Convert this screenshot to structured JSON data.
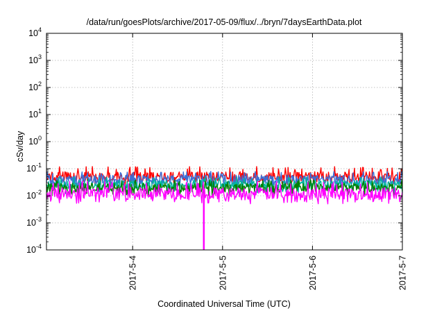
{
  "chart_data": {
    "type": "line",
    "title": "/data/run/goesPlots/archive/2017-05-09/flux/../bryn/7daysEarthData.plot",
    "xlabel": "Coordinated Universal Time (UTC)",
    "ylabel": "cSv/day",
    "yscale": "log",
    "ylim": [
      0.0001,
      10000
    ],
    "y_ticks": [
      {
        "value": 0.0001,
        "base": "10",
        "exp": "-4"
      },
      {
        "value": 0.001,
        "base": "10",
        "exp": "-3"
      },
      {
        "value": 0.01,
        "base": "10",
        "exp": "-2"
      },
      {
        "value": 0.1,
        "base": "10",
        "exp": "-1"
      },
      {
        "value": 1,
        "base": "10",
        "exp": "0"
      },
      {
        "value": 10,
        "base": "10",
        "exp": "1"
      },
      {
        "value": 100,
        "base": "10",
        "exp": "2"
      },
      {
        "value": 1000,
        "base": "10",
        "exp": "3"
      },
      {
        "value": 10000,
        "base": "10",
        "exp": "4"
      }
    ],
    "xlim": [
      "2017-05-03 01:00",
      "2017-05-07 00:00"
    ],
    "x_ticks": [
      "2017-5-4",
      "2017-5-5",
      "2017-5-6",
      "2017-5-7"
    ],
    "grid": true,
    "legend": "none",
    "series": [
      {
        "color": "#ff0000",
        "typical": 0.05,
        "range": [
          0.025,
          0.12
        ]
      },
      {
        "color": "#3c6fd6",
        "typical": 0.04,
        "range": [
          0.02,
          0.08
        ]
      },
      {
        "color": "#00b5a0",
        "typical": 0.025,
        "range": [
          0.012,
          0.05
        ]
      },
      {
        "color": "#008000",
        "typical": 0.02,
        "range": [
          0.01,
          0.04
        ]
      },
      {
        "color": "#ff00ff",
        "typical": 0.012,
        "range": [
          0.005,
          0.035
        ],
        "dropout": {
          "x": "2017-05-04 19:00",
          "y": 0.0001
        }
      }
    ]
  }
}
